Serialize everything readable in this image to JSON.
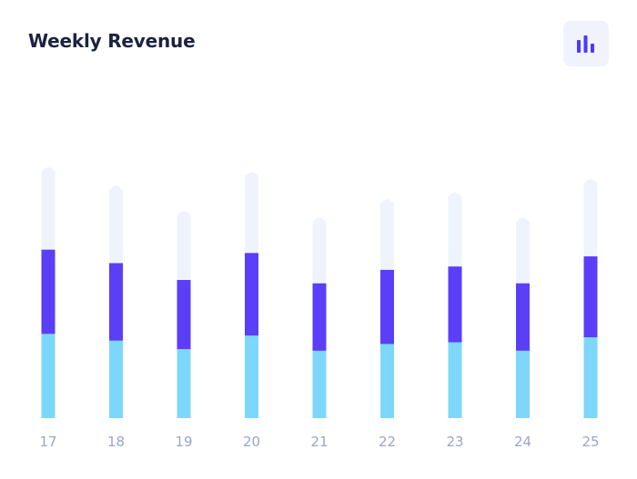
{
  "header": {
    "title": "Weekly Revenue"
  },
  "toolbar": {
    "chart_toggle_icon": "bar-chart-icon"
  },
  "colors": {
    "track": "#eff3fb",
    "series_a": "#7dd7fb",
    "series_b": "#5b3ef8",
    "tick_label": "#9aa5c9",
    "icon_accent": "#4a3aff"
  },
  "chart_data": {
    "type": "bar",
    "stacked": true,
    "categories": [
      "17",
      "18",
      "19",
      "20",
      "21",
      "22",
      "23",
      "24",
      "25"
    ],
    "series": [
      {
        "values": [
          50,
          46,
          41,
          49,
          40,
          44,
          45,
          40,
          48
        ]
      },
      {
        "values": [
          50,
          46,
          41,
          49,
          40,
          44,
          45,
          40,
          48
        ]
      }
    ],
    "totals_capacity": [
      150,
      139,
      124,
      147,
      120,
      131,
      135,
      120,
      143
    ],
    "ylim": [
      0,
      150
    ],
    "grid": false,
    "legend": "none"
  }
}
